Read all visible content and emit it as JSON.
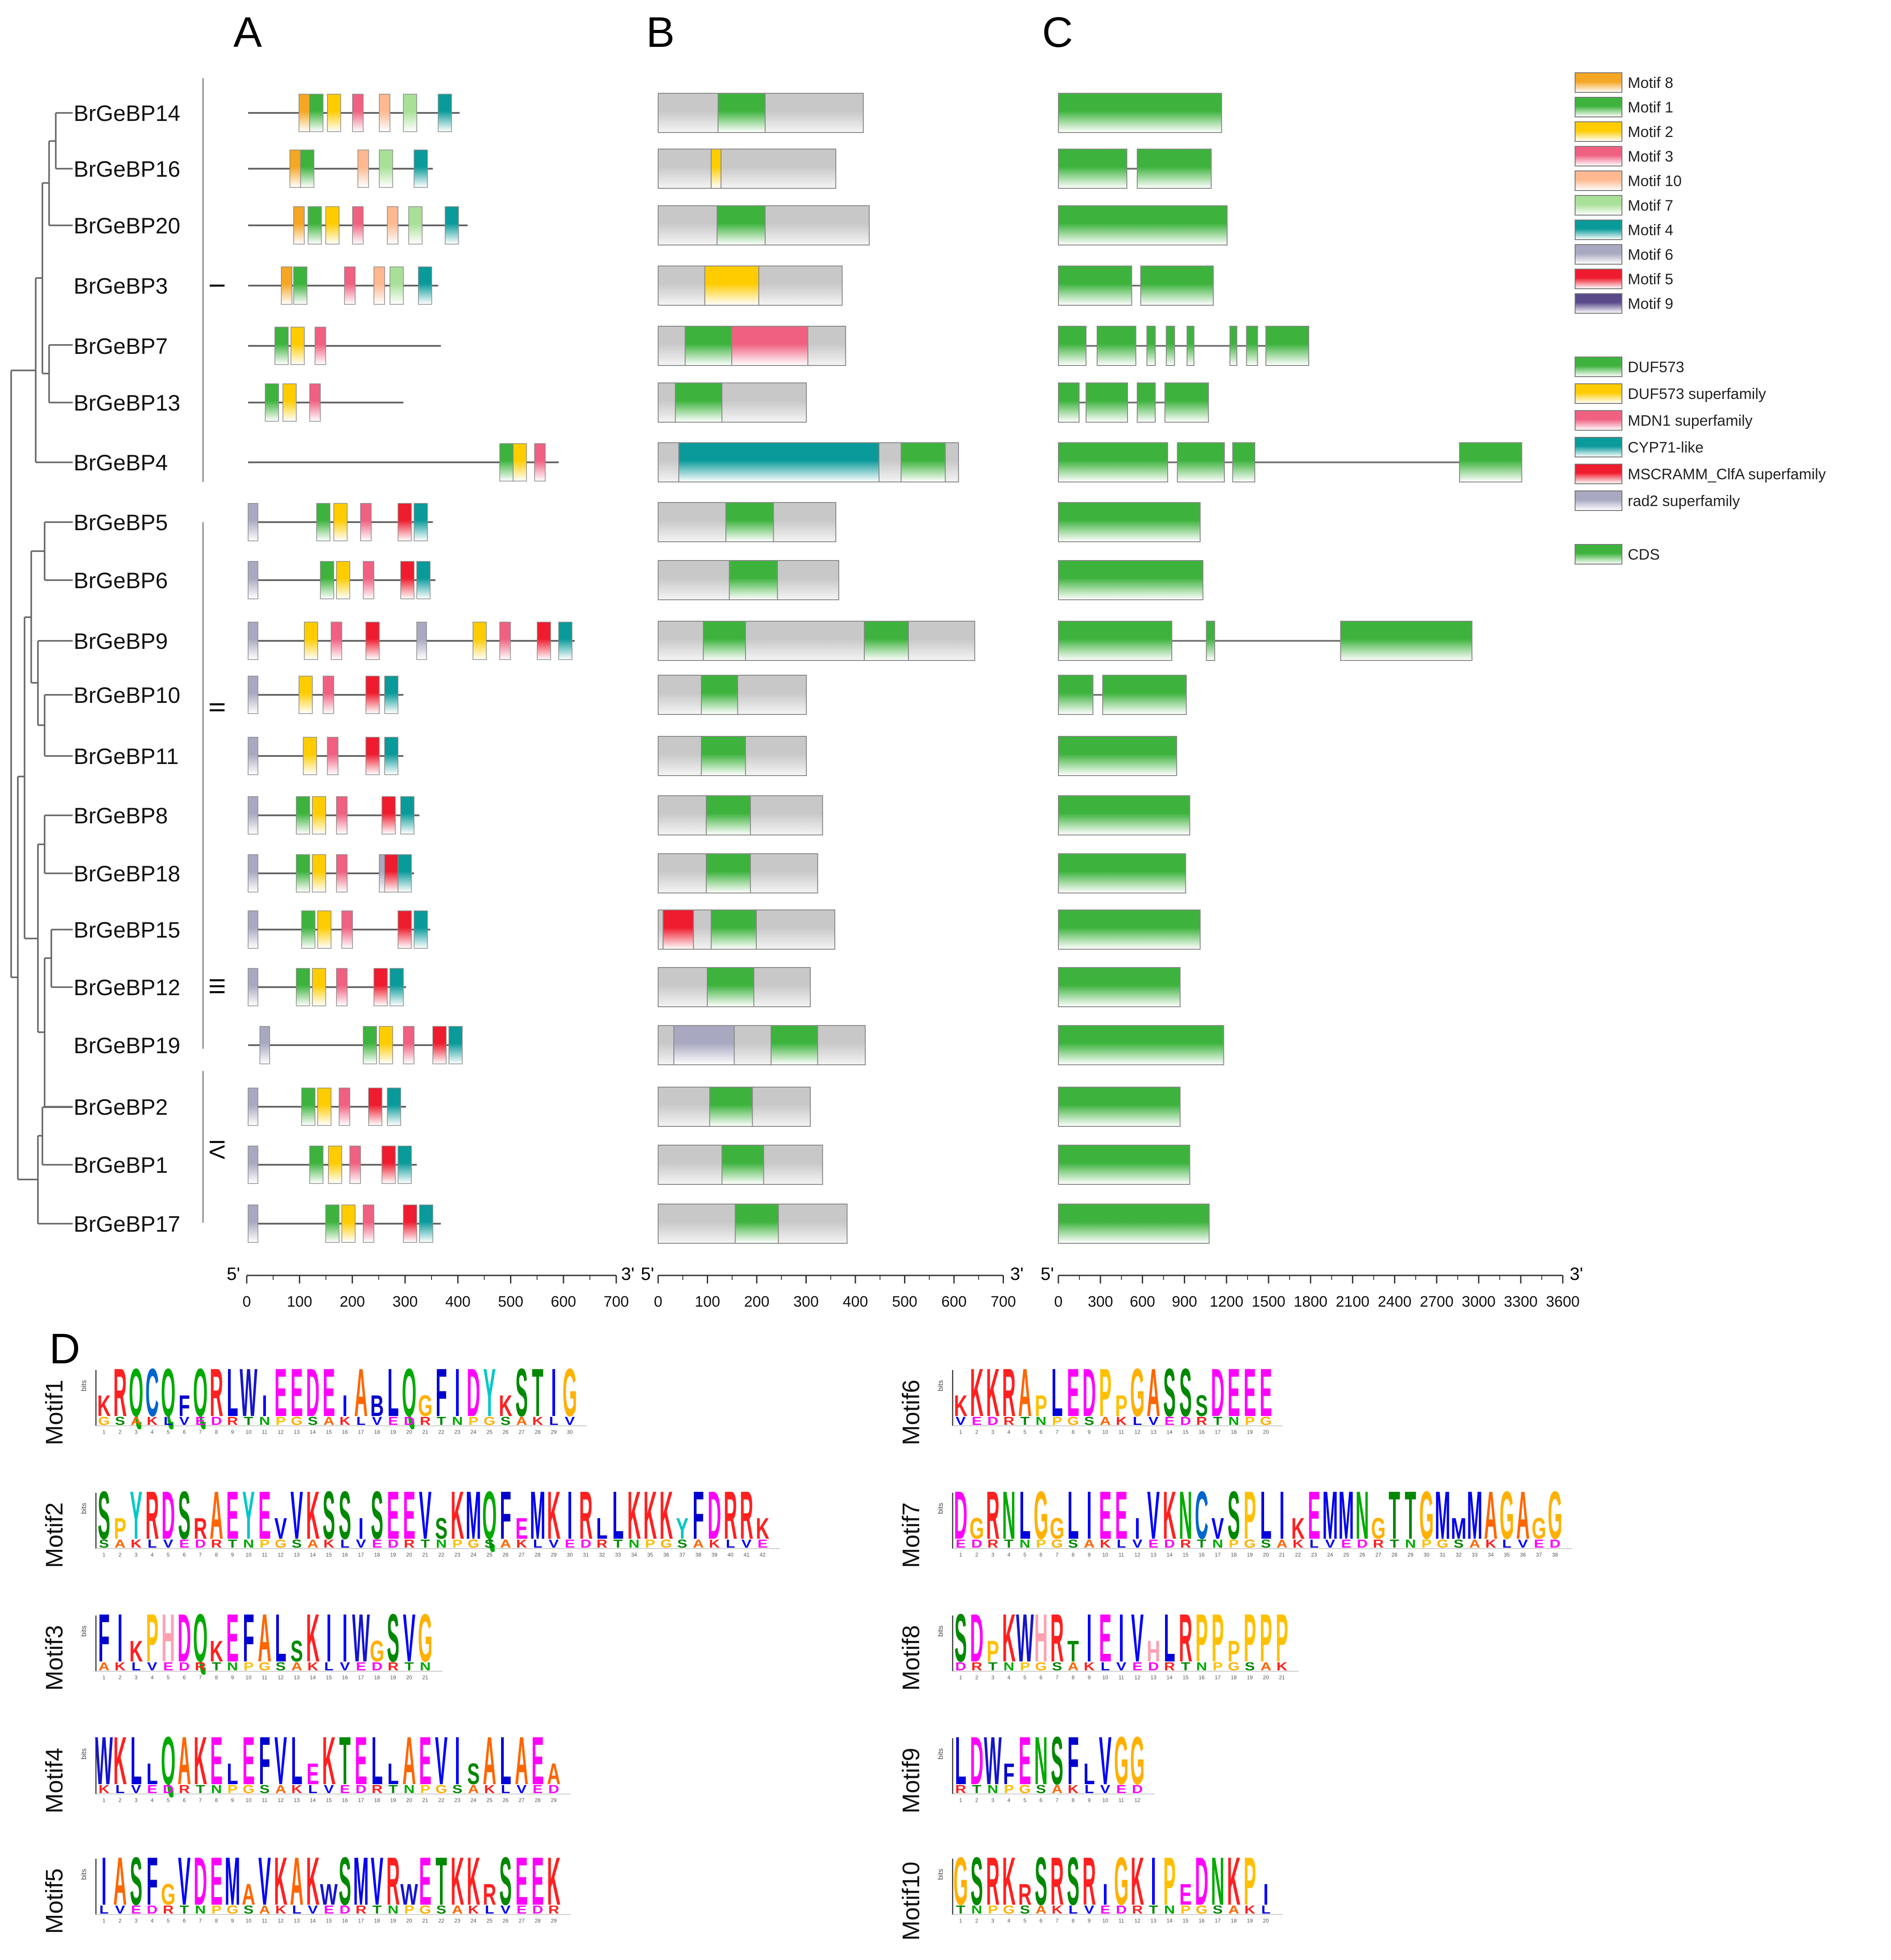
{
  "panel_labels": [
    "A",
    "B",
    "C",
    "D"
  ],
  "genes": [
    "BrGeBP14",
    "BrGeBP16",
    "BrGeBP20",
    "BrGeBP3",
    "BrGeBP7",
    "BrGeBP13",
    "BrGeBP4",
    "BrGeBP5",
    "BrGeBP6",
    "BrGeBP9",
    "BrGeBP10",
    "BrGeBP11",
    "BrGeBP8",
    "BrGeBP18",
    "BrGeBP15",
    "BrGeBP12",
    "BrGeBP19",
    "BrGeBP2",
    "BrGeBP1",
    "BrGeBP17"
  ],
  "groups": [
    "I",
    "II",
    "III",
    "IV"
  ],
  "motif_legend": [
    {
      "label": "Motif 8",
      "color": "#f5a623"
    },
    {
      "label": "Motif 1",
      "color": "#3db33d"
    },
    {
      "label": "Motif 2",
      "color": "#ffcc00"
    },
    {
      "label": "Motif 3",
      "color": "#f06080"
    },
    {
      "label": "Motif 10",
      "color": "#ffb890"
    },
    {
      "label": "Motif 7",
      "color": "#a8e098"
    },
    {
      "label": "Motif 4",
      "color": "#0a9a9a"
    },
    {
      "label": "Motif 6",
      "color": "#a8a8c0"
    },
    {
      "label": "Motif 5",
      "color": "#ee1c2e"
    },
    {
      "label": "Motif 9",
      "color": "#5a4a8a"
    }
  ],
  "domain_legend": [
    {
      "label": "DUF573",
      "color": "#3db33d"
    },
    {
      "label": "DUF573 superfamily",
      "color": "#ffcc00"
    },
    {
      "label": "MDN1 superfamily",
      "color": "#f06080"
    },
    {
      "label": "CYP71-like",
      "color": "#0a9a9a"
    },
    {
      "label": "MSCRAMM_ClfA superfamily",
      "color": "#ee1c2e"
    },
    {
      "label": "rad2 superfamily",
      "color": "#a8a8c0"
    }
  ],
  "cds_legend": {
    "label": "CDS",
    "color": "#3db33d"
  },
  "axis_a": {
    "five": "5'",
    "three": "3'",
    "ticks": [
      "0",
      "100",
      "200",
      "300",
      "400",
      "500",
      "600",
      "700"
    ]
  },
  "axis_b": {
    "five": "5'",
    "three": "3'",
    "ticks": [
      "0",
      "100",
      "200",
      "300",
      "400",
      "500",
      "600",
      "700"
    ]
  },
  "axis_c": {
    "five": "5'",
    "three": "3'",
    "ticks": [
      "0",
      "300",
      "600",
      "900",
      "1200",
      "1500",
      "1800",
      "2100",
      "2400",
      "2700",
      "3000",
      "3300",
      "3600"
    ]
  },
  "motifs_a": [
    {
      "len": 395,
      "m": [
        [
          95,
          8
        ],
        [
          115,
          1
        ],
        [
          148,
          2
        ],
        [
          195,
          3
        ],
        [
          245,
          10
        ],
        [
          290,
          7
        ],
        [
          355,
          4
        ]
      ]
    },
    {
      "len": 345,
      "m": [
        [
          78,
          8
        ],
        [
          98,
          1
        ],
        [
          205,
          10
        ],
        [
          245,
          7
        ],
        [
          310,
          4
        ]
      ]
    },
    {
      "len": 410,
      "m": [
        [
          85,
          8
        ],
        [
          112,
          1
        ],
        [
          145,
          2
        ],
        [
          195,
          3
        ],
        [
          260,
          10
        ],
        [
          300,
          7
        ],
        [
          368,
          4
        ]
      ]
    },
    {
      "len": 355,
      "m": [
        [
          62,
          8
        ],
        [
          85,
          1
        ],
        [
          180,
          3
        ],
        [
          235,
          10
        ],
        [
          265,
          7
        ],
        [
          318,
          4
        ]
      ]
    },
    {
      "len": 360,
      "m": [
        [
          50,
          1
        ],
        [
          80,
          2
        ],
        [
          125,
          3
        ]
      ]
    },
    {
      "len": 290,
      "m": [
        [
          32,
          1
        ],
        [
          65,
          2
        ],
        [
          115,
          3
        ]
      ]
    },
    {
      "len": 580,
      "m": [
        [
          470,
          1
        ],
        [
          495,
          2
        ],
        [
          535,
          3
        ]
      ]
    },
    {
      "len": 345,
      "m": [
        [
          0,
          6
        ],
        [
          128,
          1
        ],
        [
          160,
          2
        ],
        [
          210,
          3
        ],
        [
          280,
          5
        ],
        [
          310,
          4
        ]
      ]
    },
    {
      "len": 350,
      "m": [
        [
          0,
          6
        ],
        [
          135,
          1
        ],
        [
          165,
          2
        ],
        [
          215,
          3
        ],
        [
          285,
          5
        ],
        [
          315,
          4
        ]
      ]
    },
    {
      "len": 610,
      "m": [
        [
          0,
          6
        ],
        [
          105,
          2
        ],
        [
          155,
          3
        ],
        [
          220,
          5
        ],
        [
          315,
          6
        ],
        [
          420,
          2
        ],
        [
          470,
          3
        ],
        [
          540,
          5
        ],
        [
          580,
          4
        ]
      ]
    },
    {
      "len": 290,
      "m": [
        [
          0,
          6
        ],
        [
          95,
          2
        ],
        [
          140,
          3
        ],
        [
          220,
          5
        ],
        [
          255,
          4
        ]
      ]
    },
    {
      "len": 290,
      "m": [
        [
          0,
          6
        ],
        [
          103,
          2
        ],
        [
          148,
          3
        ],
        [
          220,
          5
        ],
        [
          255,
          4
        ]
      ]
    },
    {
      "len": 320,
      "m": [
        [
          0,
          6
        ],
        [
          90,
          1
        ],
        [
          120,
          2
        ],
        [
          165,
          3
        ],
        [
          250,
          5
        ],
        [
          285,
          4
        ]
      ]
    },
    {
      "len": 310,
      "m": [
        [
          0,
          6
        ],
        [
          90,
          1
        ],
        [
          120,
          2
        ],
        [
          165,
          3
        ],
        [
          245,
          6
        ],
        [
          255,
          5
        ],
        [
          280,
          4
        ]
      ]
    },
    {
      "len": 340,
      "m": [
        [
          0,
          6
        ],
        [
          100,
          1
        ],
        [
          130,
          2
        ],
        [
          175,
          3
        ],
        [
          280,
          5
        ],
        [
          310,
          4
        ]
      ]
    },
    {
      "len": 295,
      "m": [
        [
          0,
          6
        ],
        [
          90,
          1
        ],
        [
          120,
          2
        ],
        [
          165,
          3
        ],
        [
          235,
          5
        ],
        [
          265,
          4
        ]
      ]
    },
    {
      "len": 400,
      "m": [
        [
          22,
          6
        ],
        [
          215,
          1
        ],
        [
          245,
          2
        ],
        [
          290,
          3
        ],
        [
          345,
          5
        ],
        [
          375,
          4
        ]
      ]
    },
    {
      "len": 295,
      "m": [
        [
          0,
          6
        ],
        [
          100,
          1
        ],
        [
          130,
          2
        ],
        [
          170,
          3
        ],
        [
          225,
          5
        ],
        [
          260,
          4
        ]
      ]
    },
    {
      "len": 315,
      "m": [
        [
          0,
          6
        ],
        [
          115,
          1
        ],
        [
          150,
          2
        ],
        [
          190,
          3
        ],
        [
          250,
          5
        ],
        [
          280,
          4
        ]
      ]
    },
    {
      "len": 360,
      "m": [
        [
          0,
          6
        ],
        [
          145,
          1
        ],
        [
          175,
          2
        ],
        [
          215,
          3
        ],
        [
          290,
          5
        ],
        [
          320,
          4
        ]
      ]
    }
  ],
  "domains_b": [
    {
      "len": 418,
      "d": [
        [
          122,
          218,
          "DUF573"
        ]
      ]
    },
    {
      "len": 362,
      "d": [
        [
          108,
          128,
          "DUF573 superfamily"
        ]
      ]
    },
    {
      "len": 430,
      "d": [
        [
          120,
          218,
          "DUF573"
        ]
      ]
    },
    {
      "len": 375,
      "d": [
        [
          95,
          205,
          "DUF573 superfamily"
        ]
      ]
    },
    {
      "len": 382,
      "d": [
        [
          55,
          150,
          "DUF573"
        ],
        [
          150,
          305,
          "MDN1 superfamily"
        ]
      ]
    },
    {
      "len": 302,
      "d": [
        [
          35,
          130,
          "DUF573"
        ]
      ]
    },
    {
      "len": 612,
      "d": [
        [
          42,
          450,
          "CYP71-like"
        ],
        [
          495,
          585,
          "DUF573"
        ]
      ]
    },
    {
      "len": 362,
      "d": [
        [
          138,
          235,
          "DUF573"
        ]
      ]
    },
    {
      "len": 368,
      "d": [
        [
          145,
          243,
          "DUF573"
        ]
      ]
    },
    {
      "len": 645,
      "d": [
        [
          92,
          178,
          "DUF573"
        ],
        [
          420,
          510,
          "DUF573"
        ]
      ]
    },
    {
      "len": 302,
      "d": [
        [
          88,
          162,
          "DUF573"
        ]
      ]
    },
    {
      "len": 302,
      "d": [
        [
          88,
          178,
          "DUF573"
        ]
      ]
    },
    {
      "len": 335,
      "d": [
        [
          98,
          188,
          "DUF573"
        ]
      ]
    },
    {
      "len": 325,
      "d": [
        [
          98,
          188,
          "DUF573"
        ]
      ]
    },
    {
      "len": 360,
      "d": [
        [
          10,
          72,
          "MSCRAMM_ClfA superfamily"
        ],
        [
          108,
          200,
          "DUF573"
        ]
      ]
    },
    {
      "len": 310,
      "d": [
        [
          100,
          195,
          "DUF573"
        ]
      ]
    },
    {
      "len": 422,
      "d": [
        [
          32,
          155,
          "rad2 superfamily"
        ],
        [
          230,
          325,
          "DUF573"
        ]
      ]
    },
    {
      "len": 310,
      "d": [
        [
          105,
          192,
          "DUF573"
        ]
      ]
    },
    {
      "len": 335,
      "d": [
        [
          130,
          215,
          "DUF573"
        ]
      ]
    },
    {
      "len": 385,
      "d": [
        [
          157,
          245,
          "DUF573"
        ]
      ]
    }
  ],
  "cds_c": [
    {
      "len": 1180,
      "e": [
        [
          0,
          1180
        ]
      ]
    },
    {
      "len": 1105,
      "e": [
        [
          0,
          495
        ],
        [
          570,
          1105
        ]
      ]
    },
    {
      "len": 1220,
      "e": [
        [
          0,
          1220
        ]
      ]
    },
    {
      "len": 1120,
      "e": [
        [
          0,
          530
        ],
        [
          595,
          1120
        ]
      ]
    },
    {
      "len": 1810,
      "e": [
        [
          0,
          200
        ],
        [
          280,
          560
        ],
        [
          640,
          700
        ],
        [
          780,
          840
        ],
        [
          930,
          980
        ],
        [
          1240,
          1290
        ],
        [
          1360,
          1440
        ],
        [
          1500,
          1810
        ]
      ]
    },
    {
      "len": 1085,
      "e": [
        [
          0,
          150
        ],
        [
          200,
          500
        ],
        [
          570,
          700
        ],
        [
          770,
          1085
        ]
      ]
    },
    {
      "len": 3350,
      "e": [
        [
          0,
          790
        ],
        [
          860,
          1200
        ],
        [
          1260,
          1420
        ],
        [
          2900,
          3350
        ]
      ]
    },
    {
      "len": 1025,
      "e": [
        [
          0,
          1025
        ]
      ]
    },
    {
      "len": 1045,
      "e": [
        [
          0,
          1045
        ]
      ]
    },
    {
      "len": 2990,
      "e": [
        [
          0,
          820
        ],
        [
          1070,
          1130
        ],
        [
          2040,
          2990
        ]
      ]
    },
    {
      "len": 925,
      "e": [
        [
          0,
          250
        ],
        [
          320,
          925
        ]
      ]
    },
    {
      "len": 855,
      "e": [
        [
          0,
          855
        ]
      ]
    },
    {
      "len": 950,
      "e": [
        [
          0,
          950
        ]
      ]
    },
    {
      "len": 920,
      "e": [
        [
          0,
          920
        ]
      ]
    },
    {
      "len": 1025,
      "e": [
        [
          0,
          1025
        ]
      ]
    },
    {
      "len": 880,
      "e": [
        [
          0,
          880
        ]
      ]
    },
    {
      "len": 1195,
      "e": [
        [
          0,
          1195
        ]
      ]
    },
    {
      "len": 880,
      "e": [
        [
          0,
          880
        ]
      ]
    },
    {
      "len": 950,
      "e": [
        [
          0,
          950
        ]
      ]
    },
    {
      "len": 1090,
      "e": [
        [
          0,
          1090
        ]
      ]
    }
  ],
  "logos": [
    {
      "name": "Motif1",
      "seq": "KRQCQFQRLWIEEDEIAbLQGFIDYKSTIG"
    },
    {
      "name": "Motif2",
      "seq": "SPYRDSRAEYEVVKSSISEEVSKMQFEMKIRLLKKKYFDRRK"
    },
    {
      "name": "Motif3",
      "seq": "FIKPHDQKEFALSKIIWGSVG"
    },
    {
      "name": "Motif4",
      "seq": "WKLLQAKELEFVLEKTELLAEVISALAEA"
    },
    {
      "name": "Motif5",
      "seq": "IASFGVDEMAVKAKWSMVRWETKKRSEEK"
    },
    {
      "name": "Motif6",
      "seq": "KKKRAPLEDPPGASSSDEEE"
    },
    {
      "name": "Motif7",
      "seq": "DGRNLGGLIEEIVKNCVSPLIKEMMNGTTGMMMAGAGG"
    },
    {
      "name": "Motif8",
      "seq": "SDPKWHRTIEIVHLRPPPPPP"
    },
    {
      "name": "Motif9",
      "seq": "LDWFENSFLVGG"
    },
    {
      "name": "Motif10",
      "seq": "GSRKRSRSRIGKIPEDNKPI"
    }
  ],
  "logo_axis_label": "bits"
}
